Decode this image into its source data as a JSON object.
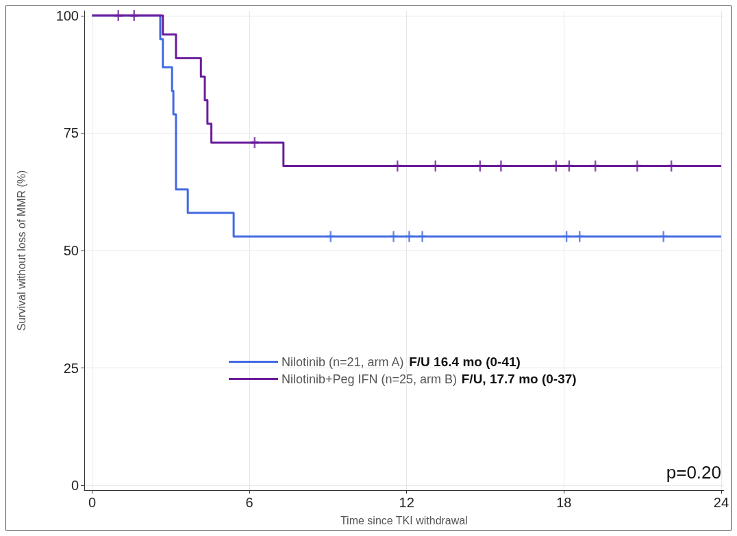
{
  "chart_data": {
    "type": "step",
    "xlabel": "Time since TKI withdrawal",
    "ylabel": "Survival without loss of MMR (%)",
    "xlim": [
      -0.3,
      24.1
    ],
    "xticks": [
      0,
      6,
      12,
      18,
      24
    ],
    "ylim": [
      -1,
      101
    ],
    "yticks": [
      0,
      25,
      50,
      75,
      100
    ],
    "grid": true,
    "legend": "bottom",
    "series": [
      {
        "name": "Nilotinib (n=21, arm A)",
        "color": "#4169e1",
        "x": [
          0,
          2.6,
          2.7,
          3.05,
          3.1,
          3.2,
          3.65,
          5.4,
          24
        ],
        "values": [
          100,
          95,
          89,
          84,
          79,
          63,
          58,
          53,
          53
        ]
      },
      {
        "name": "Nilotinib+Peg IFN (n=25, arm B)",
        "color": "#6a1b9a",
        "x": [
          0,
          2.7,
          3.2,
          4.15,
          4.3,
          4.4,
          4.55,
          7.3,
          24
        ],
        "values": [
          100,
          96,
          91,
          87,
          82,
          77,
          73,
          68,
          68
        ]
      },
      {
        "type": "scatter",
        "marker": "cross",
        "color": "#4169e1",
        "x": [
          9.1,
          11.5,
          12.1,
          12.6,
          18.1,
          18.6,
          21.8
        ],
        "values": [
          53,
          53,
          53,
          53,
          53,
          53,
          53
        ]
      },
      {
        "type": "scatter",
        "marker": "cross",
        "color": "#6a1b9a",
        "x": [
          1.0,
          1.6,
          6.2,
          11.65,
          13.1,
          14.8,
          15.6,
          17.7,
          18.2,
          19.2,
          20.8,
          22.1
        ],
        "values": [
          100,
          100,
          73,
          68,
          68,
          68,
          68,
          68,
          68,
          68,
          68,
          68
        ]
      }
    ],
    "annotations": [
      "F/U 16.4 mo (0-41)",
      "F/U, 17.7 mo (0-37)",
      "p=0.20"
    ]
  }
}
